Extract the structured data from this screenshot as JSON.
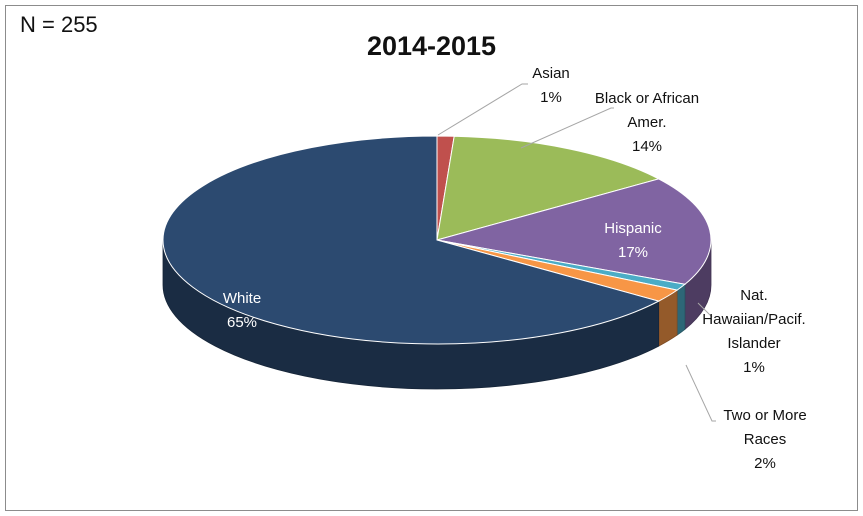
{
  "header": {
    "n_label": "N = 255"
  },
  "chart_data": {
    "type": "pie",
    "title": "2014-2015",
    "categories": [
      "Asian",
      "Black or African Amer.",
      "Hispanic",
      "Nat. Hawaiian/Pacif. Islander",
      "Two or More Races",
      "White"
    ],
    "values": [
      1,
      14,
      17,
      1,
      2,
      65
    ],
    "colors": [
      "#c0504d",
      "#9bbb59",
      "#8064a2",
      "#4bacc6",
      "#f79646",
      "#2c4a70"
    ],
    "labels": [
      {
        "lines": [
          "Asian",
          "1%"
        ],
        "color": "#111111"
      },
      {
        "lines": [
          "Black or African",
          "Amer.",
          "14%"
        ],
        "color": "#111111"
      },
      {
        "lines": [
          "Hispanic",
          "17%"
        ],
        "color": "#ffffff"
      },
      {
        "lines": [
          "Nat.",
          "Hawaiian/Pacif.",
          "Islander",
          "1%"
        ],
        "color": "#111111"
      },
      {
        "lines": [
          "Two or More",
          "Races",
          "2%"
        ],
        "color": "#111111"
      },
      {
        "lines": [
          "White",
          "65%"
        ],
        "color": "#ffffff"
      }
    ]
  }
}
